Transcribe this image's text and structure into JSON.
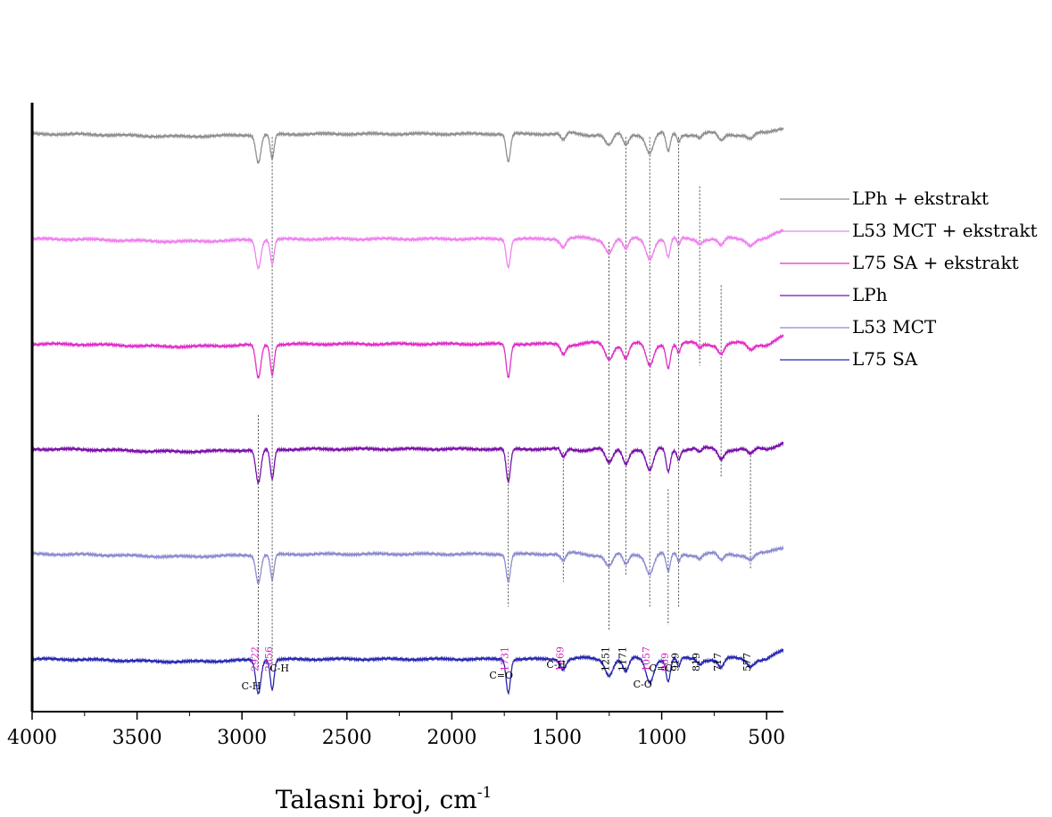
{
  "chart_data": {
    "type": "line",
    "xlabel": "Talasni broj, cm",
    "xlabel_superscript": "-1",
    "ylabel": "",
    "xlim": [
      4000,
      420
    ],
    "x_reversed": true,
    "x_ticks": [
      4000,
      3500,
      3000,
      2500,
      2000,
      1500,
      1000,
      500
    ],
    "y_ticks_visible": false,
    "grid": false,
    "legend_position": "right",
    "series": [
      {
        "name": "LPh + ekstrakt",
        "color": "#909090",
        "baseline": 0.935,
        "dip_scale": 1.0
      },
      {
        "name": "L53 MCT + ekstrakt",
        "color": "#ee82ee",
        "baseline": 0.765,
        "dip_scale": 1.0
      },
      {
        "name": "L75 SA + ekstrakt",
        "color": "#e030c8",
        "baseline": 0.595,
        "dip_scale": 1.2
      },
      {
        "name": "LPh",
        "color": "#7a10a8",
        "baseline": 0.425,
        "dip_scale": 1.2
      },
      {
        "name": "L53 MCT",
        "color": "#8c8cd0",
        "baseline": 0.255,
        "dip_scale": 1.0
      },
      {
        "name": "L75 SA",
        "color": "#2828b0",
        "baseline": 0.085,
        "dip_scale": 1.2
      }
    ],
    "absorption_bands": [
      {
        "x": 2922,
        "depth": 0.045,
        "width": 12
      },
      {
        "x": 2856,
        "depth": 0.04,
        "width": 9
      },
      {
        "x": 1731,
        "depth": 0.045,
        "width": 10
      },
      {
        "x": 1469,
        "depth": 0.012,
        "width": 12
      },
      {
        "x": 1251,
        "depth": 0.02,
        "width": 18
      },
      {
        "x": 1171,
        "depth": 0.018,
        "width": 14
      },
      {
        "x": 1057,
        "depth": 0.03,
        "width": 18
      },
      {
        "x": 969,
        "depth": 0.03,
        "width": 10
      },
      {
        "x": 919,
        "depth": 0.012,
        "width": 8
      },
      {
        "x": 819,
        "depth": 0.006,
        "width": 10
      },
      {
        "x": 717,
        "depth": 0.012,
        "width": 14
      },
      {
        "x": 577,
        "depth": 0.008,
        "width": 16
      }
    ],
    "annotations": [
      {
        "x": 2922,
        "label": "2922",
        "color": "#d020c0",
        "group": "C-H"
      },
      {
        "x": 2856,
        "label": "2856",
        "color": "#d020c0",
        "group": "C-H"
      },
      {
        "x": 1731,
        "label": "1731",
        "color": "#d020c0",
        "group": "C=O"
      },
      {
        "x": 1469,
        "label": "1469",
        "color": "#d020c0",
        "group": "C-H"
      },
      {
        "x": 1251,
        "label": "1251",
        "color": "#000000",
        "group": ""
      },
      {
        "x": 1171,
        "label": "1171",
        "color": "#000000",
        "group": ""
      },
      {
        "x": 1057,
        "label": "1057",
        "color": "#d020c0",
        "group": "C-O"
      },
      {
        "x": 969,
        "label": "969",
        "color": "#d020c0",
        "group": "C=O"
      },
      {
        "x": 919,
        "label": "919",
        "color": "#000000",
        "group": ""
      },
      {
        "x": 819,
        "label": "819",
        "color": "#000000",
        "group": ""
      },
      {
        "x": 717,
        "label": "717",
        "color": "#000000",
        "group": ""
      },
      {
        "x": 577,
        "label": "577",
        "color": "#000000",
        "group": ""
      }
    ],
    "group_labels": [
      {
        "x": 2922,
        "text": "C-H"
      },
      {
        "x": 2856,
        "text": "C-H"
      },
      {
        "x": 1731,
        "text": "C=O"
      },
      {
        "x": 1469,
        "text": "C-H"
      },
      {
        "x": 1057,
        "text": "C-O"
      },
      {
        "x": 969,
        "text": "C=O"
      }
    ]
  }
}
